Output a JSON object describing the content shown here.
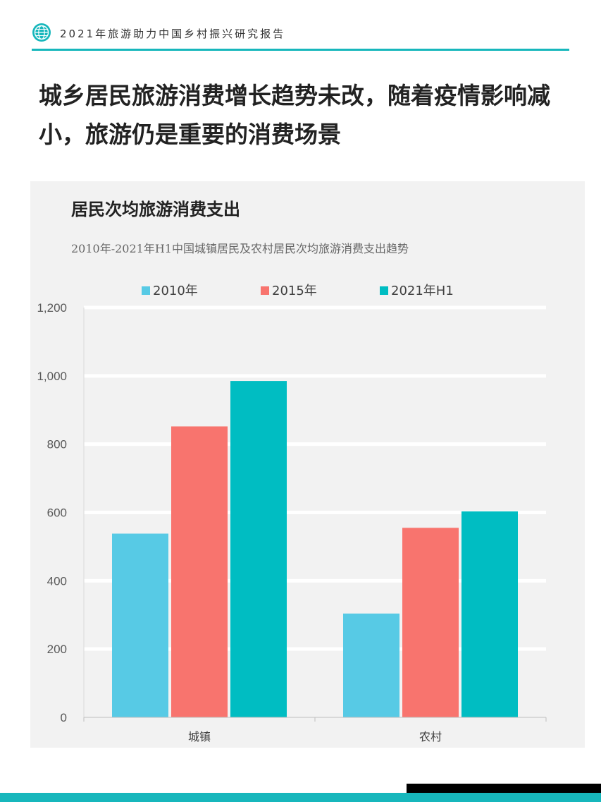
{
  "header": {
    "text": "2021年旅游助力中国乡村振兴研究报告",
    "logo_icon": "globe-icon",
    "accent_color": "#17b7bc"
  },
  "headline": "城乡居民旅游消费增长趋势未改，随着疫情影响减小，旅游仍是重要的消费场景",
  "chart_data": {
    "type": "bar",
    "title": "居民次均旅游消费支出",
    "subtitle": "2010年-2021年H1中国城镇居民及农村居民次均旅游消费支出趋势",
    "categories": [
      "城镇",
      "农村"
    ],
    "series": [
      {
        "name": "2010年",
        "values": [
          538,
          304
        ],
        "color": "#57cae5"
      },
      {
        "name": "2015年",
        "values": [
          852,
          555
        ],
        "color": "#f8746e"
      },
      {
        "name": "2021年H1",
        "values": [
          985,
          603
        ],
        "color": "#00bdc2"
      }
    ],
    "yticks": [
      "0",
      "200",
      "400",
      "600",
      "800",
      "1,000",
      "1,200"
    ],
    "ylim": [
      0,
      1200
    ],
    "ytick_step": 200,
    "grid": true,
    "legend": "top-center"
  }
}
